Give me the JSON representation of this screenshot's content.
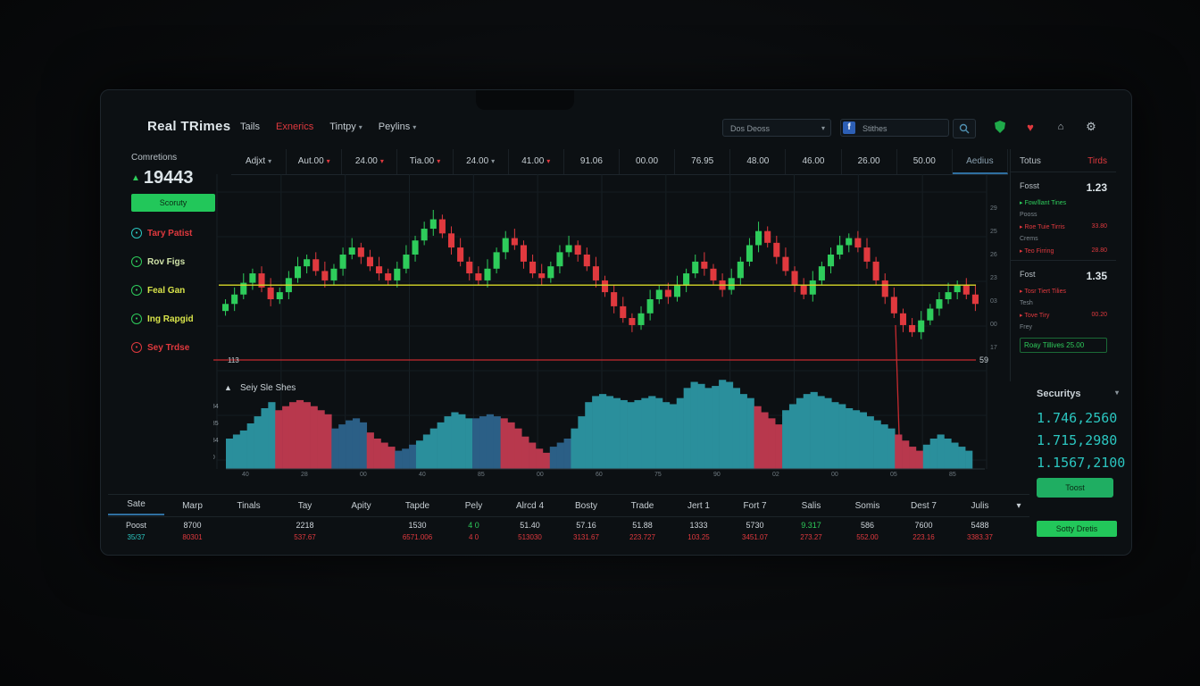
{
  "header": {
    "brand": "Real TRimes",
    "nav": [
      {
        "label": "Tails",
        "active": false,
        "dropdown": false
      },
      {
        "label": "Exnerics",
        "active": true,
        "dropdown": false
      },
      {
        "label": "Tintpy",
        "active": false,
        "dropdown": true
      },
      {
        "label": "Peylins",
        "active": false,
        "dropdown": true
      }
    ],
    "account_select": "Dos Deoss",
    "search_value": "Stithes",
    "icons": [
      "search-icon",
      "shield-icon",
      "heart-icon",
      "bell-icon",
      "settings-icon"
    ]
  },
  "sidebar": {
    "title": "Comretions",
    "value": "19443",
    "button": "Scoruty",
    "items": [
      {
        "label": "Tary Patist",
        "color": "#e0393e",
        "ring": "#2bc6c0"
      },
      {
        "label": "Rov Figs",
        "color": "#cfe2a8",
        "ring": "#2ecc5b"
      },
      {
        "label": "Feal Gan",
        "color": "#d9e44a",
        "ring": "#2ecc5b"
      },
      {
        "label": "Ing Rapgid",
        "color": "#d9e44a",
        "ring": "#2ecc5b"
      },
      {
        "label": "Sey Trdse",
        "color": "#e0393e",
        "ring": "#e0393e"
      }
    ]
  },
  "chart_tabs": [
    {
      "label": "Adjxt",
      "dropdown": true,
      "down": false
    },
    {
      "label": "Aut.00",
      "dropdown": true,
      "down": true
    },
    {
      "label": "24.00",
      "dropdown": true,
      "down": true
    },
    {
      "label": "Tia.00",
      "dropdown": true,
      "down": true
    },
    {
      "label": "24.00",
      "dropdown": true,
      "down": false
    },
    {
      "label": "41.00",
      "dropdown": true,
      "down": true
    },
    {
      "label": "91.06",
      "dropdown": false,
      "down": false
    },
    {
      "label": "00.00",
      "dropdown": false,
      "down": false
    },
    {
      "label": "76.95",
      "dropdown": false,
      "down": false
    },
    {
      "label": "48.00",
      "dropdown": false,
      "down": false
    },
    {
      "label": "46.00",
      "dropdown": false,
      "down": false
    },
    {
      "label": "26.00",
      "dropdown": false,
      "down": false
    },
    {
      "label": "50.00",
      "dropdown": false,
      "down": false
    },
    {
      "label": "Aedius",
      "dropdown": false,
      "down": false,
      "active": true
    }
  ],
  "chart_data": {
    "type": "candlestick",
    "closes": [
      42,
      46,
      51,
      55,
      49,
      44,
      47,
      53,
      58,
      61,
      56,
      52,
      57,
      63,
      66,
      62,
      58,
      55,
      52,
      57,
      63,
      69,
      74,
      78,
      72,
      66,
      60,
      55,
      52,
      57,
      64,
      70,
      67,
      60,
      55,
      53,
      58,
      64,
      67,
      63,
      58,
      52,
      47,
      41,
      36,
      33,
      38,
      44,
      48,
      45,
      50,
      55,
      60,
      57,
      52,
      48,
      53,
      60,
      67,
      73,
      68,
      62,
      56,
      50,
      46,
      52,
      58,
      63,
      67,
      70,
      66,
      60,
      52,
      45,
      38,
      33,
      30,
      35,
      40,
      44,
      47,
      50,
      46,
      42
    ],
    "resistance_label": "",
    "support_line": 50,
    "floor_label": "113",
    "floor_right_label": "59",
    "right_axis": [
      "29",
      "25",
      "26",
      "23",
      "03",
      "00",
      "17"
    ],
    "volume": {
      "title": "Seiy Sle Shes",
      "y_labels": [
        "184",
        "185",
        "284",
        "00"
      ],
      "x_labels": [
        "40",
        "28",
        "00",
        "40",
        "85",
        "00",
        "60",
        "75",
        "90",
        "02",
        "00",
        "05",
        "85"
      ],
      "center_label": "",
      "segments": [
        {
          "color": "teal",
          "values": [
            30,
            34,
            38,
            45,
            52,
            60,
            66
          ]
        },
        {
          "color": "red",
          "values": [
            58,
            62,
            66,
            68,
            66,
            62,
            58,
            54
          ]
        },
        {
          "color": "blue",
          "values": [
            40,
            44,
            48,
            50,
            46
          ]
        },
        {
          "color": "red",
          "values": [
            36,
            30,
            26,
            22
          ]
        },
        {
          "color": "blue",
          "values": [
            18,
            20,
            24
          ]
        },
        {
          "color": "teal",
          "values": [
            28,
            34,
            40,
            46,
            52,
            56,
            54,
            50
          ]
        },
        {
          "color": "blue",
          "values": [
            50,
            52,
            54,
            52
          ]
        },
        {
          "color": "red",
          "values": [
            50,
            46,
            40,
            32,
            26,
            20,
            16
          ]
        },
        {
          "color": "blue",
          "values": [
            22,
            26,
            30
          ]
        },
        {
          "color": "teal",
          "values": [
            40,
            52,
            66,
            72,
            74,
            72,
            70,
            68,
            66,
            68,
            70,
            72,
            70,
            66,
            64,
            70,
            80,
            86,
            84,
            80,
            82,
            88,
            86,
            80,
            74,
            70
          ]
        },
        {
          "color": "red",
          "values": [
            62,
            56,
            50,
            44
          ]
        },
        {
          "color": "teal",
          "values": [
            58,
            64,
            70,
            74,
            76,
            72,
            70,
            66,
            64,
            60,
            58,
            56,
            52,
            48,
            44,
            40
          ]
        },
        {
          "color": "red",
          "values": [
            34,
            28,
            22,
            18
          ]
        },
        {
          "color": "teal",
          "values": [
            24,
            30,
            34,
            30,
            26,
            22,
            18
          ]
        }
      ]
    }
  },
  "right_panel": {
    "head_left": "Totus",
    "head_right": "Tirds",
    "block1": {
      "label": "Fosst",
      "value": "1.23",
      "lines": [
        {
          "text": "Fow/llant Tines",
          "val": "",
          "cls": "g"
        },
        {
          "text": "Pooss",
          "val": "",
          "cls": "muted"
        },
        {
          "text": "Roe Tuie Tirris",
          "val": "33.80",
          "cls": "r"
        },
        {
          "text": "Crems",
          "val": "",
          "cls": "muted"
        },
        {
          "text": "Teo Firring",
          "val": "28.80",
          "cls": "r"
        }
      ]
    },
    "block2": {
      "label": "Fost",
      "value": "1.35",
      "lines": [
        {
          "text": "Tosr Tiert Tilies",
          "val": "",
          "cls": "r"
        },
        {
          "text": "Tesh",
          "val": "",
          "cls": "muted"
        },
        {
          "text": "Tove Tiry",
          "val": "00.20",
          "cls": "r"
        },
        {
          "text": "Frey",
          "val": "",
          "cls": "muted"
        }
      ]
    },
    "green_box": "Roay Tillives 25.00"
  },
  "security": {
    "title": "Securitys",
    "values": [
      "1.746,2560",
      "1.715,2980",
      "1.1567,2100"
    ],
    "button": "Toost",
    "button2": "Sotty Dretis"
  },
  "table": {
    "headers": [
      "Sate",
      "Marp",
      "Tinals",
      "Tay",
      "Apity",
      "Tapde",
      "Pely",
      "Alrcd 4",
      "Bosty",
      "Trade",
      "Jert 1",
      "Fort 7",
      "Salis",
      "Somis",
      "Dest 7",
      "Julis"
    ],
    "row": [
      {
        "a": "Poost",
        "b": "35/37",
        "bcls": "g"
      },
      {
        "a": "8700",
        "b": "80301"
      },
      {
        "a": "",
        "b": ""
      },
      {
        "a": "2218",
        "b": "537.67"
      },
      {
        "a": "",
        "b": ""
      },
      {
        "a": "1530",
        "b": "6571.006"
      },
      {
        "a": "4 0",
        "b": "4 0",
        "acls": "gr"
      },
      {
        "a": "51.40",
        "b": "513030"
      },
      {
        "a": "57.16",
        "b": "3131.67"
      },
      {
        "a": "51.88",
        "b": "223.727"
      },
      {
        "a": "1333",
        "b": "103.25"
      },
      {
        "a": "5730",
        "b": "3451.07"
      },
      {
        "a": "9.317",
        "b": "273.27",
        "acls": "gr"
      },
      {
        "a": "586",
        "b": "552.00"
      },
      {
        "a": "7600",
        "b": "223.16"
      },
      {
        "a": "5488",
        "b": "3383.37"
      }
    ]
  },
  "colors": {
    "up": "#2ecc5b",
    "down": "#e0393e",
    "support": "#d8d82a",
    "floor": "#c52a2f",
    "teal": "#2a8f9c",
    "red": "#b8384d",
    "blue": "#2b5f86"
  }
}
